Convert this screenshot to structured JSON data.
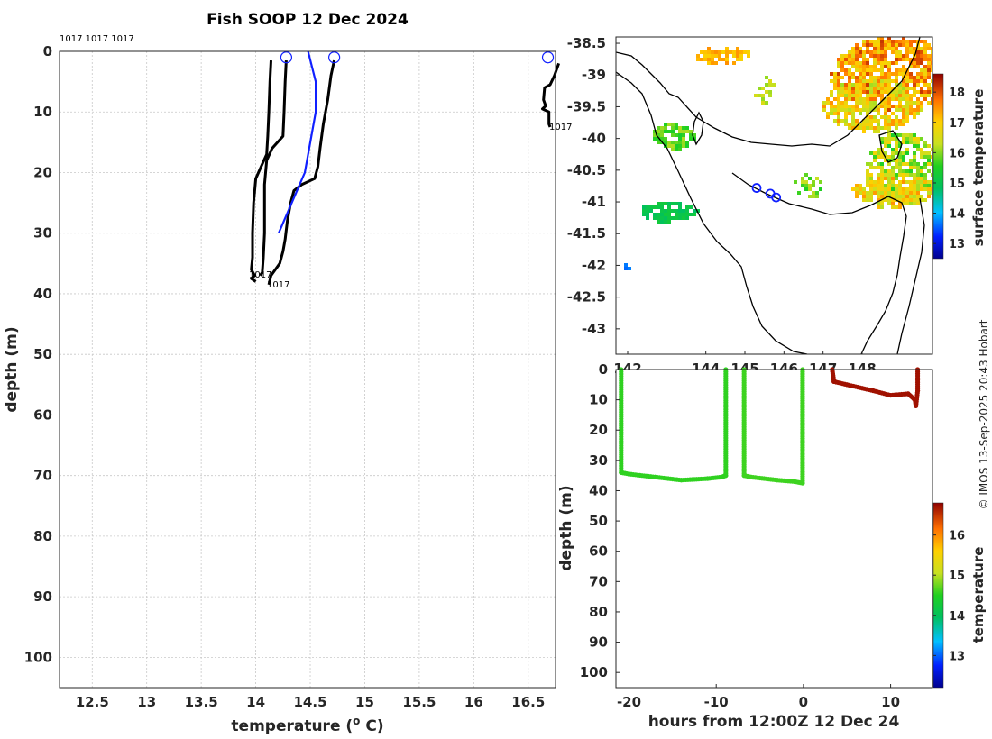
{
  "chart_data": [
    {
      "type": "line",
      "id": "profile",
      "title": "Fish SOOP 12 Dec 2024",
      "xlabel": "temperature (",
      "xlabel_sup": "o",
      "xlabel_unit": " C)",
      "ylabel": "depth (m)",
      "xlim": [
        12.2,
        16.75
      ],
      "ylim": [
        105,
        0
      ],
      "xticks": [
        "12.5",
        "13",
        "13.5",
        "14",
        "14.5",
        "15",
        "15.5",
        "16",
        "16.5"
      ],
      "yticks": [
        "0",
        "10",
        "20",
        "30",
        "40",
        "50",
        "60",
        "70",
        "80",
        "90",
        "100"
      ],
      "top_labels": "1017 1017 1017",
      "end_labels": [
        "1017",
        "1017",
        "1017"
      ],
      "grid": true,
      "series": [
        {
          "name": "profile-a",
          "color": "#000000",
          "points": [
            [
              14.14,
              1.5
            ],
            [
              14.13,
              5
            ],
            [
              14.12,
              10
            ],
            [
              14.11,
              14
            ],
            [
              14.1,
              17
            ],
            [
              14.05,
              19
            ],
            [
              14.0,
              21
            ],
            [
              13.98,
              25
            ],
            [
              13.97,
              30
            ],
            [
              13.97,
              34
            ],
            [
              13.96,
              36
            ],
            [
              13.99,
              37
            ],
            [
              13.96,
              37.5
            ],
            [
              14.0,
              38
            ]
          ]
        },
        {
          "name": "profile-b",
          "color": "#000000",
          "points": [
            [
              14.28,
              1.5
            ],
            [
              14.27,
              5
            ],
            [
              14.26,
              10
            ],
            [
              14.25,
              14
            ],
            [
              14.15,
              16
            ],
            [
              14.1,
              18
            ],
            [
              14.08,
              22
            ],
            [
              14.08,
              26
            ],
            [
              14.08,
              30
            ],
            [
              14.07,
              34
            ],
            [
              14.06,
              36.5
            ],
            [
              14.04,
              37
            ]
          ]
        },
        {
          "name": "profile-c",
          "color": "#000000",
          "points": [
            [
              14.72,
              1.5
            ],
            [
              14.69,
              4
            ],
            [
              14.66,
              8
            ],
            [
              14.62,
              12
            ],
            [
              14.59,
              16
            ],
            [
              14.57,
              19
            ],
            [
              14.54,
              21
            ],
            [
              14.42,
              22
            ],
            [
              14.35,
              23
            ],
            [
              14.32,
              25
            ],
            [
              14.29,
              28
            ],
            [
              14.27,
              31
            ],
            [
              14.25,
              33
            ],
            [
              14.22,
              35
            ],
            [
              14.18,
              36
            ],
            [
              14.14,
              37
            ],
            [
              14.12,
              38.5
            ]
          ]
        },
        {
          "name": "profile-d",
          "color": "#000000",
          "points": [
            [
              16.78,
              2
            ],
            [
              16.74,
              4
            ],
            [
              16.7,
              5.5
            ],
            [
              16.65,
              6
            ],
            [
              16.64,
              8
            ],
            [
              16.66,
              9
            ],
            [
              16.63,
              9.5
            ],
            [
              16.69,
              10
            ],
            [
              16.69,
              12
            ],
            [
              16.7,
              12.5
            ]
          ]
        },
        {
          "name": "model",
          "color": "#1020ff",
          "points": [
            [
              14.48,
              0
            ],
            [
              14.55,
              5
            ],
            [
              14.55,
              10
            ],
            [
              14.45,
              20
            ],
            [
              14.21,
              30
            ]
          ]
        }
      ],
      "markers": [
        [
          14.28,
          1
        ],
        [
          14.72,
          1
        ],
        [
          16.68,
          1
        ]
      ]
    },
    {
      "type": "heatmap",
      "id": "map",
      "xlim": [
        141.7,
        149.8
      ],
      "ylim": [
        -43.4,
        -38.4
      ],
      "xticks": [
        "142",
        "144",
        "145",
        "146",
        "147",
        "148"
      ],
      "yticks": [
        "-38.5",
        "-39",
        "-39.5",
        "-40",
        "-40.5",
        "-41",
        "-41.5",
        "-42",
        "-42.5",
        "-43"
      ],
      "colorbar_label": "surface temperature",
      "colorbar_ticks": [
        "13",
        "14",
        "15",
        "16",
        "17",
        "18"
      ],
      "colorbar_range": [
        12.5,
        18.6
      ],
      "track": [
        [
          145.3,
          -40.78
        ],
        [
          145.65,
          -40.87
        ],
        [
          145.8,
          -40.93
        ]
      ]
    },
    {
      "type": "scatter",
      "id": "timeseries",
      "xlabel": "hours from 12:00Z 12 Dec 24",
      "ylabel": "depth (m)",
      "xlim": [
        -21.5,
        14.8
      ],
      "ylim": [
        105,
        0
      ],
      "xticks": [
        "-20",
        "-10",
        "0",
        "10"
      ],
      "yticks": [
        "0",
        "10",
        "20",
        "30",
        "40",
        "50",
        "60",
        "70",
        "80",
        "90",
        "100"
      ],
      "colorbar_label": "temperature",
      "colorbar_ticks": [
        "13",
        "14",
        "15",
        "16"
      ],
      "colorbar_range": [
        12.2,
        16.8
      ]
    }
  ],
  "credit": "© IMOS 13-Sep-2025 20:43 Hobart",
  "colors": {
    "grid": "#c8c8c8",
    "axis": "#262626",
    "model": "#1020ff",
    "coast": "#000000"
  }
}
